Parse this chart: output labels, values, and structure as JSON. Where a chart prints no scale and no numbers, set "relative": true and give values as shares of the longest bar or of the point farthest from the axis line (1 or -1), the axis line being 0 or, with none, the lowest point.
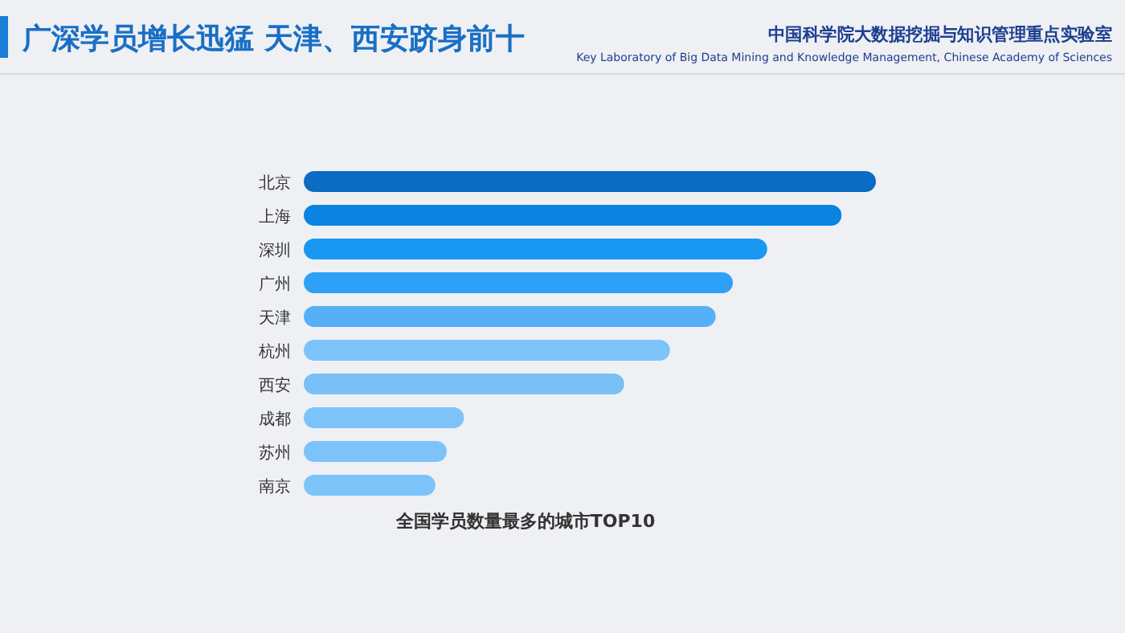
{
  "chart_data": {
    "type": "bar",
    "orientation": "horizontal",
    "relative": true,
    "title": "广深学员增长迅猛 天津、西安跻身前十",
    "categories": [
      "北京",
      "上海",
      "深圳",
      "广州",
      "天津",
      "杭州",
      "西安",
      "成都",
      "苏州",
      "南京"
    ],
    "values": [
      1,
      0.94,
      0.81,
      0.75,
      0.72,
      0.64,
      0.56,
      0.28,
      0.25,
      0.23
    ],
    "colors": [
      "#0a6cc2",
      "#0a84e0",
      "#1897f3",
      "#2ea0f5",
      "#55b0f7",
      "#7cc3f9",
      "#78c0f6",
      "#7cc3f9",
      "#7cc3f9",
      "#7cc3f9"
    ],
    "xlabel": "全国学员数量最多的城市TOP10",
    "annotations": [
      "中国科学院大数据挖掘与知识管理重点实验室",
      "Key Laboratory of Big Data Mining and Knowledge Management, Chinese Academy of Sciences"
    ]
  }
}
